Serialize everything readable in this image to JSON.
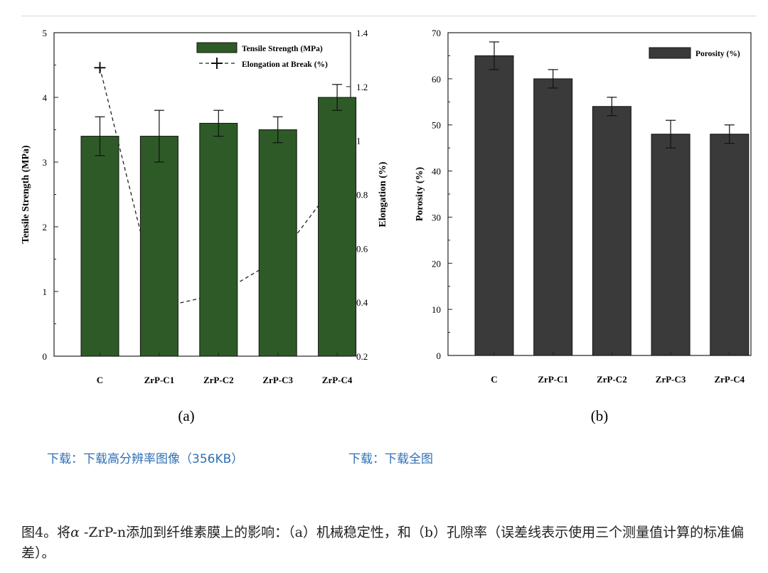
{
  "chart_data": [
    {
      "panel": "(a)",
      "type": "bar",
      "categories": [
        "C",
        "ZrP-C1",
        "ZrP-C2",
        "ZrP-C3",
        "ZrP-C4"
      ],
      "ylabel": "Tensile Strength (MPa)",
      "y2label": "Elongation (%)",
      "ylim": [
        0,
        5
      ],
      "y2lim": [
        0.2,
        1.4
      ],
      "yticks": [
        "0",
        "1",
        "2",
        "3",
        "4",
        "5"
      ],
      "y2ticks": [
        "0.2",
        "0.4",
        "0.6",
        "0.8",
        "1",
        "1.2",
        "1.4"
      ],
      "legend_location": "top-right",
      "bar_color": "#2e5a27",
      "series": [
        {
          "name": "Tensile Strength (MPa)",
          "kind": "bar",
          "axis": "left",
          "values": [
            3.4,
            3.4,
            3.6,
            3.5,
            4.0
          ],
          "errors": [
            0.3,
            0.4,
            0.2,
            0.2,
            0.2
          ]
        },
        {
          "name": "Elongation at Break (%)",
          "kind": "line",
          "axis": "right",
          "values": [
            1.27,
            0.38,
            0.43,
            0.56,
            0.85
          ]
        }
      ]
    },
    {
      "panel": "(b)",
      "type": "bar",
      "categories": [
        "C",
        "ZrP-C1",
        "ZrP-C2",
        "ZrP-C3",
        "ZrP-C4"
      ],
      "ylabel": "Porosity (%)",
      "ylim": [
        0,
        70
      ],
      "yticks": [
        "0",
        "10",
        "20",
        "30",
        "40",
        "50",
        "60",
        "70"
      ],
      "legend_location": "top-right",
      "bar_color": "#3a3a3a",
      "series": [
        {
          "name": "Porosity (%)",
          "kind": "bar",
          "axis": "left",
          "values": [
            65,
            60,
            54,
            48,
            48
          ],
          "errors": [
            3,
            2,
            2,
            3,
            2
          ]
        }
      ]
    }
  ],
  "links": {
    "hires": "下载：下载高分辨率图像（356KB）",
    "full": "下载：下载全图"
  },
  "caption": {
    "prefix": "图4。将",
    "alpha": "α",
    "text": " -ZrP-n添加到纤维素膜上的影响：（a）机械稳定性，和（b）孔隙率（误差线表示使用三个测量值计算的标准偏差）。"
  }
}
